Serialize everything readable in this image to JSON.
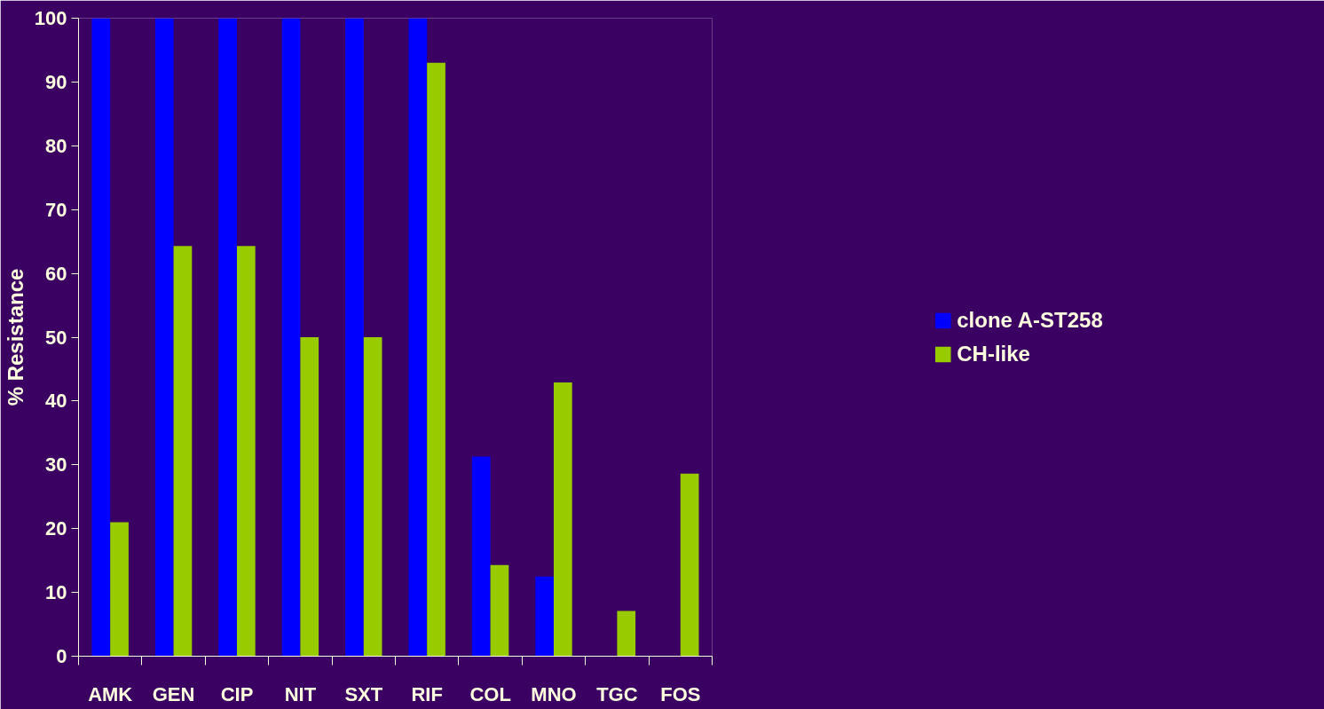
{
  "chart_data": {
    "type": "bar",
    "ylabel": "% Resistance",
    "categories": [
      "AMK",
      "GEN",
      "CIP",
      "NIT",
      "SXT",
      "RIF",
      "COL",
      "MNO",
      "TGC",
      "FOS"
    ],
    "series": [
      {
        "name": "clone A-ST258",
        "color": "#0000ff",
        "values": [
          100,
          100,
          100,
          100,
          100,
          100,
          31.3,
          12.5,
          0,
          0
        ]
      },
      {
        "name": "CH-like",
        "color": "#99cc00",
        "values": [
          21,
          64.3,
          64.3,
          50,
          50,
          93,
          14.3,
          42.9,
          7.1,
          28.6
        ]
      }
    ],
    "ylim": [
      0,
      100
    ],
    "yticks": [
      0,
      10,
      20,
      30,
      40,
      50,
      60,
      70,
      80,
      90,
      100
    ],
    "grid": false,
    "legend": "right"
  }
}
